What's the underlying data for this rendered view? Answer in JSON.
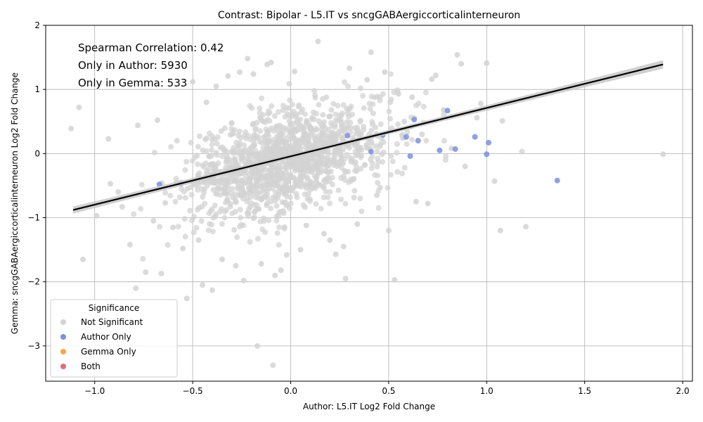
{
  "chart_data": {
    "type": "scatter",
    "title": "Contrast: Bipolar - L5.IT vs sncgGABAergiccorticalinterneuron",
    "xlabel": "Author: L5.IT Log2 Fold Change",
    "ylabel": "Gemma: sncgGABAergiccorticalinterneuron Log2 Fold Change",
    "xlim": [
      -1.25,
      2.05
    ],
    "ylim": [
      -3.55,
      2.0
    ],
    "xticks": [
      -1.0,
      -0.5,
      0.0,
      0.5,
      1.0,
      1.5,
      2.0
    ],
    "xtick_labels": [
      "−1.0",
      "−0.5",
      "0.0",
      "0.5",
      "1.0",
      "1.5",
      "2.0"
    ],
    "yticks": [
      -3,
      -2,
      -1,
      0,
      1,
      2
    ],
    "ytick_labels": [
      "−3",
      "−2",
      "−1",
      "0",
      "1",
      "2"
    ],
    "grid": true,
    "annotations": [
      "Spearman Correlation: 0.42",
      "Only in Author: 5930",
      "Only in Gemma: 533"
    ],
    "regression_line": {
      "x": [
        -1.11,
        1.9
      ],
      "y": [
        -0.88,
        1.39
      ]
    },
    "legend": {
      "title": "Significance",
      "position": "lower-left",
      "entries": [
        {
          "name": "Not Significant",
          "color": "#d3d3d3"
        },
        {
          "name": "Author Only",
          "color": "#7b8fde"
        },
        {
          "name": "Gemma Only",
          "color": "#f5a845"
        },
        {
          "name": "Both",
          "color": "#e06b7e"
        }
      ]
    },
    "series": [
      {
        "name": "Not Significant",
        "color": "#d3d3d3",
        "points": [
          [
            -1.12,
            0.39
          ],
          [
            -1.08,
            0.72
          ],
          [
            -1.06,
            -1.65
          ],
          [
            -0.99,
            -0.97
          ],
          [
            -0.93,
            0.23
          ],
          [
            -0.92,
            -0.47
          ],
          [
            -0.88,
            -0.6
          ],
          [
            -0.86,
            -0.83
          ],
          [
            -0.82,
            -1.42
          ],
          [
            -0.79,
            -2.1
          ],
          [
            -0.78,
            0.44
          ],
          [
            -0.74,
            -1.85
          ],
          [
            -0.7,
            -1.05
          ],
          [
            -0.68,
            0.52
          ],
          [
            -0.66,
            -1.87
          ],
          [
            -0.64,
            -0.77
          ],
          [
            -0.6,
            -1.15
          ],
          [
            -0.58,
            0.2
          ],
          [
            -0.55,
            -1.48
          ],
          [
            -0.53,
            -2.26
          ],
          [
            -0.5,
            1.12
          ],
          [
            -0.47,
            -1.35
          ],
          [
            -0.45,
            -2.05
          ],
          [
            -0.43,
            0.8
          ],
          [
            -0.4,
            -2.13
          ],
          [
            -0.38,
            1.05
          ],
          [
            -0.35,
            -1.65
          ],
          [
            -0.32,
            1.21
          ],
          [
            -0.28,
            -1.75
          ],
          [
            -0.26,
            1.27
          ],
          [
            -0.24,
            -1.98
          ],
          [
            -0.22,
            1.48
          ],
          [
            -0.19,
            1.24
          ],
          [
            -0.17,
            -3.0
          ],
          [
            -0.15,
            -1.72
          ],
          [
            -0.12,
            1.39
          ],
          [
            -0.1,
            1.42
          ],
          [
            -0.09,
            -3.3
          ],
          [
            -0.08,
            -1.9
          ],
          [
            -0.05,
            -1.82
          ],
          [
            -0.02,
            -1.58
          ],
          [
            0.02,
            1.28
          ],
          [
            0.05,
            -1.5
          ],
          [
            0.08,
            -1.12
          ],
          [
            0.14,
            1.75
          ],
          [
            0.17,
            -1.25
          ],
          [
            0.2,
            -1.35
          ],
          [
            0.23,
            -1.57
          ],
          [
            0.27,
            -1.45
          ],
          [
            0.28,
            -1.95
          ],
          [
            0.3,
            1.33
          ],
          [
            0.34,
            -1.1
          ],
          [
            0.39,
            1.15
          ],
          [
            0.41,
            1.58
          ],
          [
            0.44,
            -0.65
          ],
          [
            0.48,
            1.27
          ],
          [
            0.5,
            -1.2
          ],
          [
            0.53,
            -1.97
          ],
          [
            0.55,
            0.93
          ],
          [
            0.58,
            0.5
          ],
          [
            0.62,
            0.88
          ],
          [
            0.64,
            -0.75
          ],
          [
            0.67,
            0.3
          ],
          [
            0.7,
            -0.78
          ],
          [
            0.72,
            1.16
          ],
          [
            0.74,
            1.22
          ],
          [
            0.78,
            0.68
          ],
          [
            0.82,
            0.08
          ],
          [
            0.85,
            1.54
          ],
          [
            0.87,
            1.4
          ],
          [
            0.89,
            -0.2
          ],
          [
            0.95,
            0.56
          ],
          [
            0.97,
            0.78
          ],
          [
            1.0,
            1.41
          ],
          [
            1.04,
            -0.43
          ],
          [
            1.07,
            -1.2
          ],
          [
            1.08,
            0.51
          ],
          [
            1.18,
            0.03
          ],
          [
            1.2,
            -1.14
          ],
          [
            1.9,
            -0.01
          ]
        ],
        "cloud": {
          "count": 1400,
          "center": [
            -0.02,
            -0.12
          ],
          "spread": [
            0.26,
            0.44
          ],
          "correlation": 0.45,
          "seed": 7
        }
      },
      {
        "name": "Author Only",
        "color": "#7b8fde",
        "points": [
          [
            -0.67,
            -0.48
          ],
          [
            -0.56,
            -0.47
          ],
          [
            0.29,
            0.28
          ],
          [
            0.41,
            0.03
          ],
          [
            0.47,
            0.29
          ],
          [
            0.59,
            0.26
          ],
          [
            0.61,
            -0.04
          ],
          [
            0.63,
            0.53
          ],
          [
            0.65,
            0.2
          ],
          [
            0.76,
            0.05
          ],
          [
            0.8,
            0.67
          ],
          [
            0.84,
            0.07
          ],
          [
            0.94,
            0.26
          ],
          [
            1.0,
            -0.01
          ],
          [
            1.01,
            0.17
          ],
          [
            1.36,
            -0.42
          ]
        ]
      },
      {
        "name": "Gemma Only",
        "color": "#f5a845",
        "points": []
      },
      {
        "name": "Both",
        "color": "#e06b7e",
        "points": []
      }
    ]
  }
}
